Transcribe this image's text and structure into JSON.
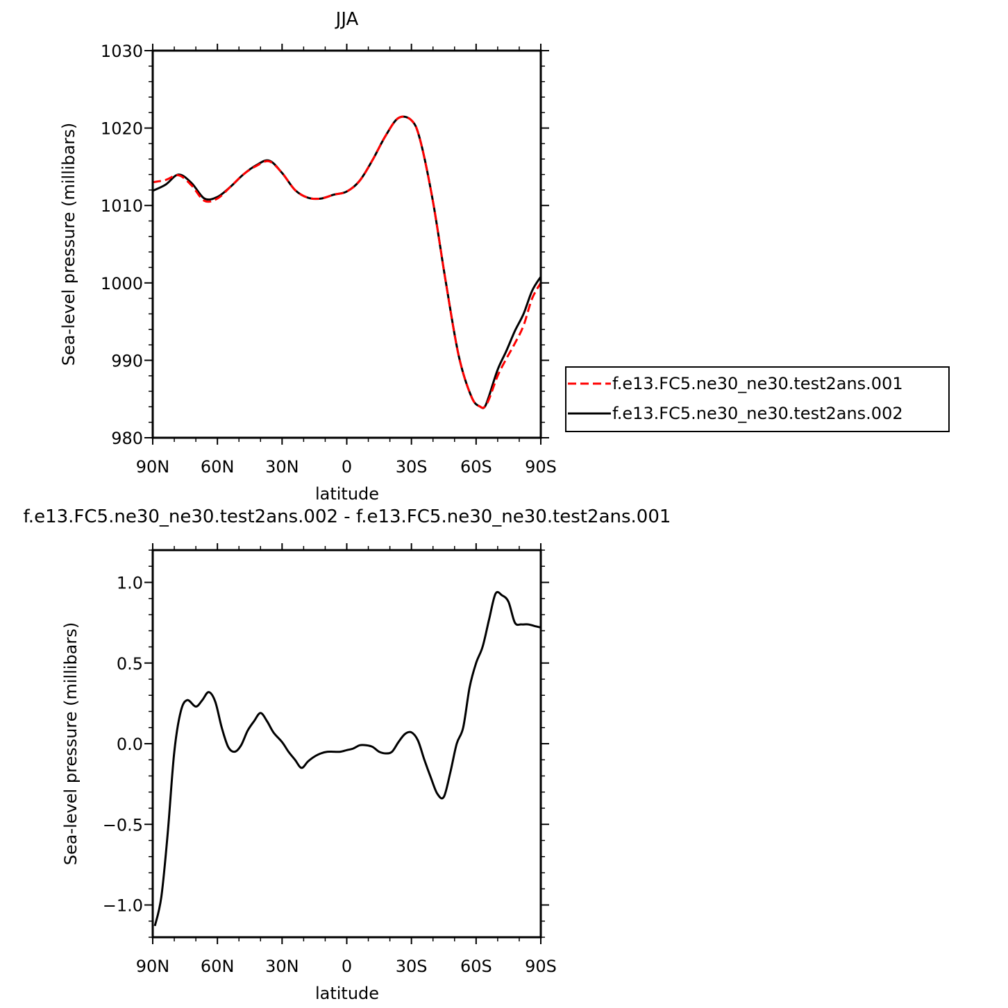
{
  "chart_data": [
    {
      "type": "line",
      "title": "JJA",
      "xlabel": "latitude",
      "ylabel": "Sea-level pressure (millibars)",
      "xlim": [
        90,
        -90
      ],
      "ylim": [
        980,
        1030
      ],
      "xticks": [
        90,
        60,
        30,
        0,
        -30,
        -60,
        -90
      ],
      "xtick_labels": [
        "90N",
        "60N",
        "30N",
        "0",
        "30S",
        "60S",
        "90S"
      ],
      "yticks": [
        980,
        990,
        1000,
        1010,
        1020,
        1030
      ],
      "ytick_labels": [
        "980",
        "990",
        "1000",
        "1010",
        "1020",
        "1030"
      ],
      "legend_position": "right",
      "series": [
        {
          "name": "f.e13.FC5.ne30_ne30.test2ans.001",
          "color": "#ff0000",
          "dash": "dashed",
          "x": [
            90,
            84,
            78,
            72,
            66,
            60,
            54,
            48,
            42,
            36,
            30,
            24,
            18,
            12,
            6,
            0,
            -6,
            -12,
            -18,
            -24,
            -30,
            -34,
            -40,
            -46,
            -52,
            -58,
            -62,
            -64,
            -66,
            -70,
            -74,
            -78,
            -82,
            -86,
            -90
          ],
          "y": [
            1013.0,
            1013.3,
            1013.9,
            1012.6,
            1010.6,
            1010.9,
            1012.4,
            1014.0,
            1015.1,
            1015.7,
            1014.2,
            1012.0,
            1011.0,
            1010.9,
            1011.4,
            1011.8,
            1013.2,
            1015.9,
            1019.0,
            1021.3,
            1021.0,
            1018.5,
            1010.5,
            1000.0,
            990.5,
            985.2,
            984.0,
            984.0,
            985.0,
            988.0,
            990.2,
            992.2,
            994.5,
            998.0,
            1000.0
          ]
        },
        {
          "name": "f.e13.FC5.ne30_ne30.test2ans.002",
          "color": "#000000",
          "dash": "solid",
          "x": [
            90,
            84,
            78,
            72,
            66,
            60,
            54,
            48,
            42,
            36,
            30,
            24,
            18,
            12,
            6,
            0,
            -6,
            -12,
            -18,
            -24,
            -30,
            -34,
            -40,
            -46,
            -52,
            -58,
            -62,
            -64,
            -66,
            -70,
            -74,
            -78,
            -82,
            -86,
            -90
          ],
          "y": [
            1011.9,
            1012.7,
            1014.0,
            1012.9,
            1010.9,
            1011.1,
            1012.4,
            1014.0,
            1015.2,
            1015.8,
            1014.2,
            1012.0,
            1011.0,
            1010.9,
            1011.4,
            1011.8,
            1013.2,
            1015.9,
            1019.0,
            1021.3,
            1021.0,
            1018.5,
            1010.5,
            1000.0,
            990.5,
            985.2,
            984.0,
            984.0,
            985.4,
            988.8,
            991.2,
            993.8,
            996.0,
            999.0,
            1000.8
          ]
        }
      ]
    },
    {
      "type": "line",
      "title": "f.e13.FC5.ne30_ne30.test2ans.002 - f.e13.FC5.ne30_ne30.test2ans.001",
      "xlabel": "latitude",
      "ylabel": "Sea-level pressure (millibars)",
      "xlim": [
        90,
        -90
      ],
      "ylim": [
        -1.2,
        1.2
      ],
      "xticks": [
        90,
        60,
        30,
        0,
        -30,
        -60,
        -90
      ],
      "xtick_labels": [
        "90N",
        "60N",
        "30N",
        "0",
        "30S",
        "60S",
        "90S"
      ],
      "yticks": [
        -1.0,
        -0.5,
        0.0,
        0.5,
        1.0
      ],
      "ytick_labels": [
        "−1.0",
        "−0.5",
        "0.0",
        "0.5",
        "1.0"
      ],
      "series": [
        {
          "color": "#000000",
          "dash": "solid",
          "x": [
            89,
            86,
            83,
            80,
            77,
            74,
            70,
            67,
            64,
            61,
            58,
            55,
            52,
            49,
            46,
            43,
            40,
            37,
            34,
            30,
            27,
            24,
            21,
            18,
            15,
            12,
            9,
            6,
            3,
            0,
            -3,
            -6,
            -9,
            -12,
            -15,
            -18,
            -21,
            -24,
            -27,
            -30,
            -33,
            -36,
            -39,
            -42,
            -45,
            -48,
            -51,
            -54,
            -57,
            -60,
            -63,
            -66,
            -69,
            -72,
            -75,
            -78,
            -81,
            -84,
            -87,
            -90
          ],
          "y": [
            -1.13,
            -0.95,
            -0.55,
            -0.05,
            0.2,
            0.27,
            0.23,
            0.27,
            0.32,
            0.26,
            0.1,
            -0.02,
            -0.05,
            -0.01,
            0.08,
            0.14,
            0.19,
            0.14,
            0.07,
            0.01,
            -0.05,
            -0.1,
            -0.15,
            -0.11,
            -0.08,
            -0.06,
            -0.05,
            -0.05,
            -0.05,
            -0.04,
            -0.03,
            -0.01,
            -0.01,
            -0.02,
            -0.05,
            -0.06,
            -0.05,
            0.01,
            0.06,
            0.07,
            0.02,
            -0.1,
            -0.21,
            -0.31,
            -0.33,
            -0.18,
            0.0,
            0.1,
            0.35,
            0.5,
            0.6,
            0.77,
            0.93,
            0.92,
            0.88,
            0.75,
            0.74,
            0.74,
            0.73,
            0.72
          ]
        }
      ]
    }
  ]
}
